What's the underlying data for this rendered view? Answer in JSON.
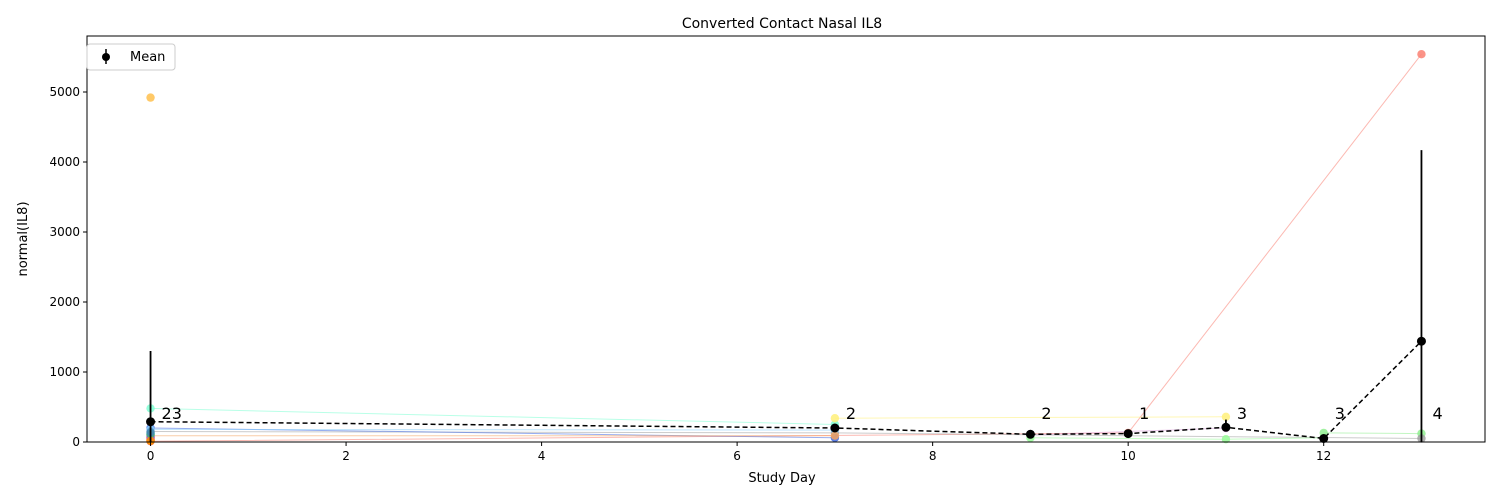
{
  "chart_data": {
    "type": "line",
    "title": "Converted Contact Nasal IL8",
    "xlabel": "Study Day",
    "ylabel": "normal(IL8)",
    "xlim": [
      -0.65,
      13.65
    ],
    "ylim": [
      0,
      5800
    ],
    "xticks": [
      0,
      2,
      4,
      6,
      8,
      10,
      12
    ],
    "yticks": [
      0,
      1000,
      2000,
      3000,
      4000,
      5000
    ],
    "grid": false,
    "legend": {
      "placement": "top-left",
      "entries": [
        "Mean"
      ]
    },
    "mean_series": {
      "name": "Mean",
      "color": "#000000",
      "x": [
        0,
        7,
        9,
        10,
        11,
        12,
        13
      ],
      "y": [
        290,
        200,
        110,
        120,
        210,
        50,
        1440
      ],
      "err_low": [
        0,
        200,
        110,
        120,
        210,
        50,
        0
      ],
      "err_high": [
        1300,
        200,
        110,
        120,
        320,
        50,
        4170
      ],
      "counts": [
        "23",
        "2",
        "2",
        "1",
        "3",
        "3",
        "4"
      ]
    },
    "subjects": [
      {
        "color": "#fa8072",
        "x": [
          0,
          10,
          13
        ],
        "y": [
          10,
          130,
          5540
        ]
      },
      {
        "color": "#ffc04c",
        "x": [
          0
        ],
        "y": [
          4920
        ]
      },
      {
        "color": "#7fffd4",
        "x": [
          0,
          7
        ],
        "y": [
          480,
          250
        ]
      },
      {
        "color": "#fff07a",
        "x": [
          7,
          11
        ],
        "y": [
          340,
          360
        ]
      },
      {
        "color": "#90ee90",
        "x": [
          12,
          13
        ],
        "y": [
          130,
          120
        ]
      },
      {
        "color": "#dda0dd",
        "x": [
          9,
          11
        ],
        "y": [
          100,
          200
        ]
      },
      {
        "color": "#a0a0a0",
        "x": [
          0,
          7,
          13
        ],
        "y": [
          150,
          130,
          50
        ]
      },
      {
        "color": "#4169e1",
        "x": [
          0,
          7
        ],
        "y": [
          200,
          60
        ]
      },
      {
        "color": "#87cefa",
        "x": [
          0,
          7
        ],
        "y": [
          180,
          170
        ]
      },
      {
        "color": "#f4a460",
        "x": [
          0,
          7
        ],
        "y": [
          90,
          90
        ]
      },
      {
        "color": "#98fb98",
        "x": [
          9,
          11,
          12
        ],
        "y": [
          60,
          40,
          60
        ]
      },
      {
        "color": "#ff6347",
        "x": [
          0
        ],
        "y": [
          40
        ]
      },
      {
        "color": "#e9967a",
        "x": [
          0
        ],
        "y": [
          60
        ]
      },
      {
        "color": "#b22222",
        "x": [
          0
        ],
        "y": [
          20
        ]
      },
      {
        "color": "#ffd700",
        "x": [
          0
        ],
        "y": [
          30
        ]
      },
      {
        "color": "#00ced1",
        "x": [
          0
        ],
        "y": [
          120
        ]
      },
      {
        "color": "#6a5acd",
        "x": [
          0
        ],
        "y": [
          80
        ]
      },
      {
        "color": "#66cdaa",
        "x": [
          0
        ],
        "y": [
          100
        ]
      },
      {
        "color": "#cd853f",
        "x": [
          0
        ],
        "y": [
          50
        ]
      },
      {
        "color": "#ba55d3",
        "x": [
          0
        ],
        "y": [
          70
        ]
      },
      {
        "color": "#3cb371",
        "x": [
          0
        ],
        "y": [
          110
        ]
      },
      {
        "color": "#ff8c00",
        "x": [
          0
        ],
        "y": [
          15
        ]
      },
      {
        "color": "#4682b4",
        "x": [
          0
        ],
        "y": [
          140
        ]
      }
    ]
  }
}
